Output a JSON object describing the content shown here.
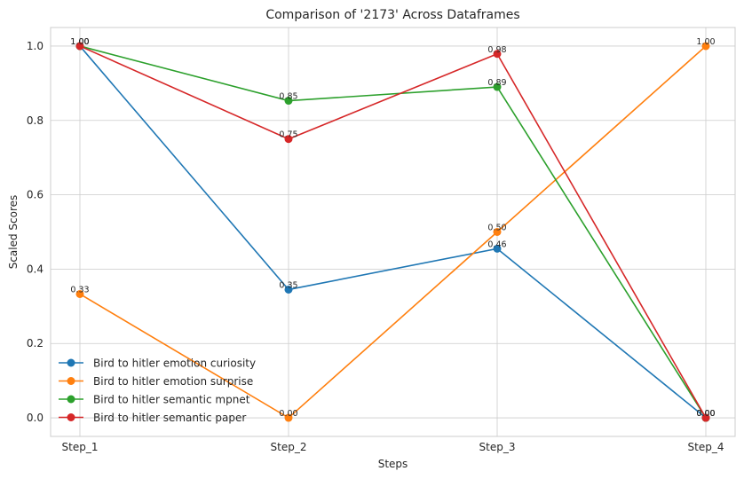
{
  "chart_data": {
    "type": "line",
    "title": "Comparison of '2173' Across Dataframes",
    "xlabel": "Steps",
    "ylabel": "Scaled Scores",
    "categories": [
      "Step_1",
      "Step_2",
      "Step_3",
      "Step_4"
    ],
    "ylim": [
      -0.05,
      1.05
    ],
    "yticks": [
      0.0,
      0.2,
      0.4,
      0.6,
      0.8,
      1.0
    ],
    "ytick_labels": [
      "0.0",
      "0.2",
      "0.4",
      "0.6",
      "0.8",
      "1.0"
    ],
    "grid": true,
    "legend_position": "lower-left",
    "series": [
      {
        "name": "Bird to hitler emotion curiosity",
        "color": "#1f77b4",
        "values": [
          1.0,
          0.345,
          0.455,
          0.0
        ],
        "labels": [
          "1.00",
          "0.35",
          "0.46",
          "0.00"
        ]
      },
      {
        "name": "Bird to hitler emotion surprise",
        "color": "#ff7f0e",
        "values": [
          0.333,
          0.0,
          0.5,
          1.0
        ],
        "labels": [
          "0.33",
          "0.00",
          "0.50",
          "1.00"
        ]
      },
      {
        "name": "Bird to hitler semantic mpnet",
        "color": "#2ca02c",
        "values": [
          1.0,
          0.853,
          0.89,
          0.0
        ],
        "labels": [
          "1.00",
          "0.85",
          "0.89",
          "0.00"
        ]
      },
      {
        "name": "Bird to hitler semantic paper",
        "color": "#d62728",
        "values": [
          1.0,
          0.75,
          0.979,
          0.0
        ],
        "labels": [
          "1.00",
          "0.75",
          "0.98",
          "0.00"
        ]
      }
    ]
  }
}
